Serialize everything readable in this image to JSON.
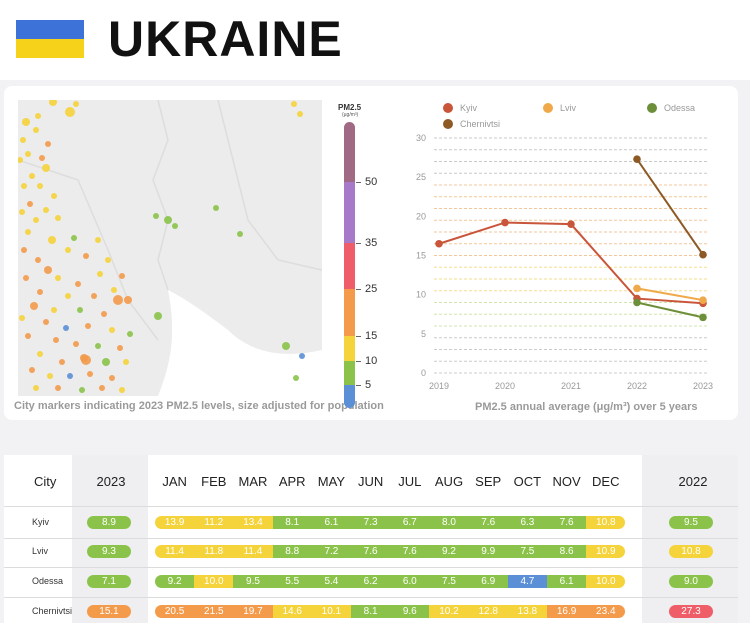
{
  "header": {
    "title": "UKRAINE"
  },
  "map": {
    "caption": "City markers indicating 2023 PM2.5 levels, size adjusted for population"
  },
  "scale": {
    "title": "PM2.5",
    "unit": "(μg/m³)",
    "labels": [
      "50",
      "35",
      "25",
      "15",
      "10",
      "5"
    ],
    "colors": {
      "blue": "#5b8fd6",
      "green": "#8bc34a",
      "yellow": "#f5d33b",
      "orange": "#f39a4b",
      "red": "#ee5d68",
      "purple": "#a77ac9",
      "mauve": "#a06a85"
    }
  },
  "chart_data": {
    "type": "line",
    "caption": "PM2.5 annual average (μg/m³) over 5 years",
    "x": [
      "2019",
      "2020",
      "2021",
      "2022",
      "2023"
    ],
    "yticks": [
      "0",
      "5",
      "10",
      "15",
      "20",
      "25",
      "30"
    ],
    "ylim": [
      0,
      30
    ],
    "legend_position": "top",
    "series": [
      {
        "name": "Kyiv",
        "color": "#c9553a",
        "values": [
          16.5,
          19.2,
          19.0,
          9.5,
          8.9
        ]
      },
      {
        "name": "Lviv",
        "color": "#f0a94a",
        "values": [
          null,
          null,
          null,
          10.8,
          9.3
        ]
      },
      {
        "name": "Odessa",
        "color": "#6e8f3a",
        "values": [
          null,
          null,
          null,
          9.0,
          7.1
        ]
      },
      {
        "name": "Chernivtsi",
        "color": "#8d5a26",
        "values": [
          null,
          null,
          null,
          27.3,
          15.1
        ]
      }
    ]
  },
  "table": {
    "headers": {
      "city": "City",
      "y2023": "2023",
      "y2022": "2022"
    },
    "months": [
      "JAN",
      "FEB",
      "MAR",
      "APR",
      "MAY",
      "JUN",
      "JUL",
      "AUG",
      "SEP",
      "OCT",
      "NOV",
      "DEC"
    ],
    "rows": [
      {
        "city": "Kyiv",
        "y2023": "8.9",
        "months": [
          "13.9",
          "11.2",
          "13.4",
          "8.1",
          "6.1",
          "7.3",
          "6.7",
          "8.0",
          "7.6",
          "6.3",
          "7.6",
          "10.8"
        ],
        "y2022": "9.5"
      },
      {
        "city": "Lviv",
        "y2023": "9.3",
        "months": [
          "11.4",
          "11.8",
          "11.4",
          "8.8",
          "7.2",
          "7.6",
          "7.6",
          "9.2",
          "9.9",
          "7.5",
          "8.6",
          "10.9"
        ],
        "y2022": "10.8"
      },
      {
        "city": "Odessa",
        "y2023": "7.1",
        "months": [
          "9.2",
          "10.0",
          "9.5",
          "5.5",
          "5.4",
          "6.2",
          "6.0",
          "7.5",
          "6.9",
          "4.7",
          "6.1",
          "10.0"
        ],
        "y2022": "9.0"
      },
      {
        "city": "Chernivtsi",
        "y2023": "15.1",
        "months": [
          "20.5",
          "21.5",
          "19.7",
          "14.6",
          "10.1",
          "8.1",
          "9.6",
          "10.2",
          "12.8",
          "13.8",
          "16.9",
          "23.4"
        ],
        "y2022": "27.3"
      }
    ]
  }
}
